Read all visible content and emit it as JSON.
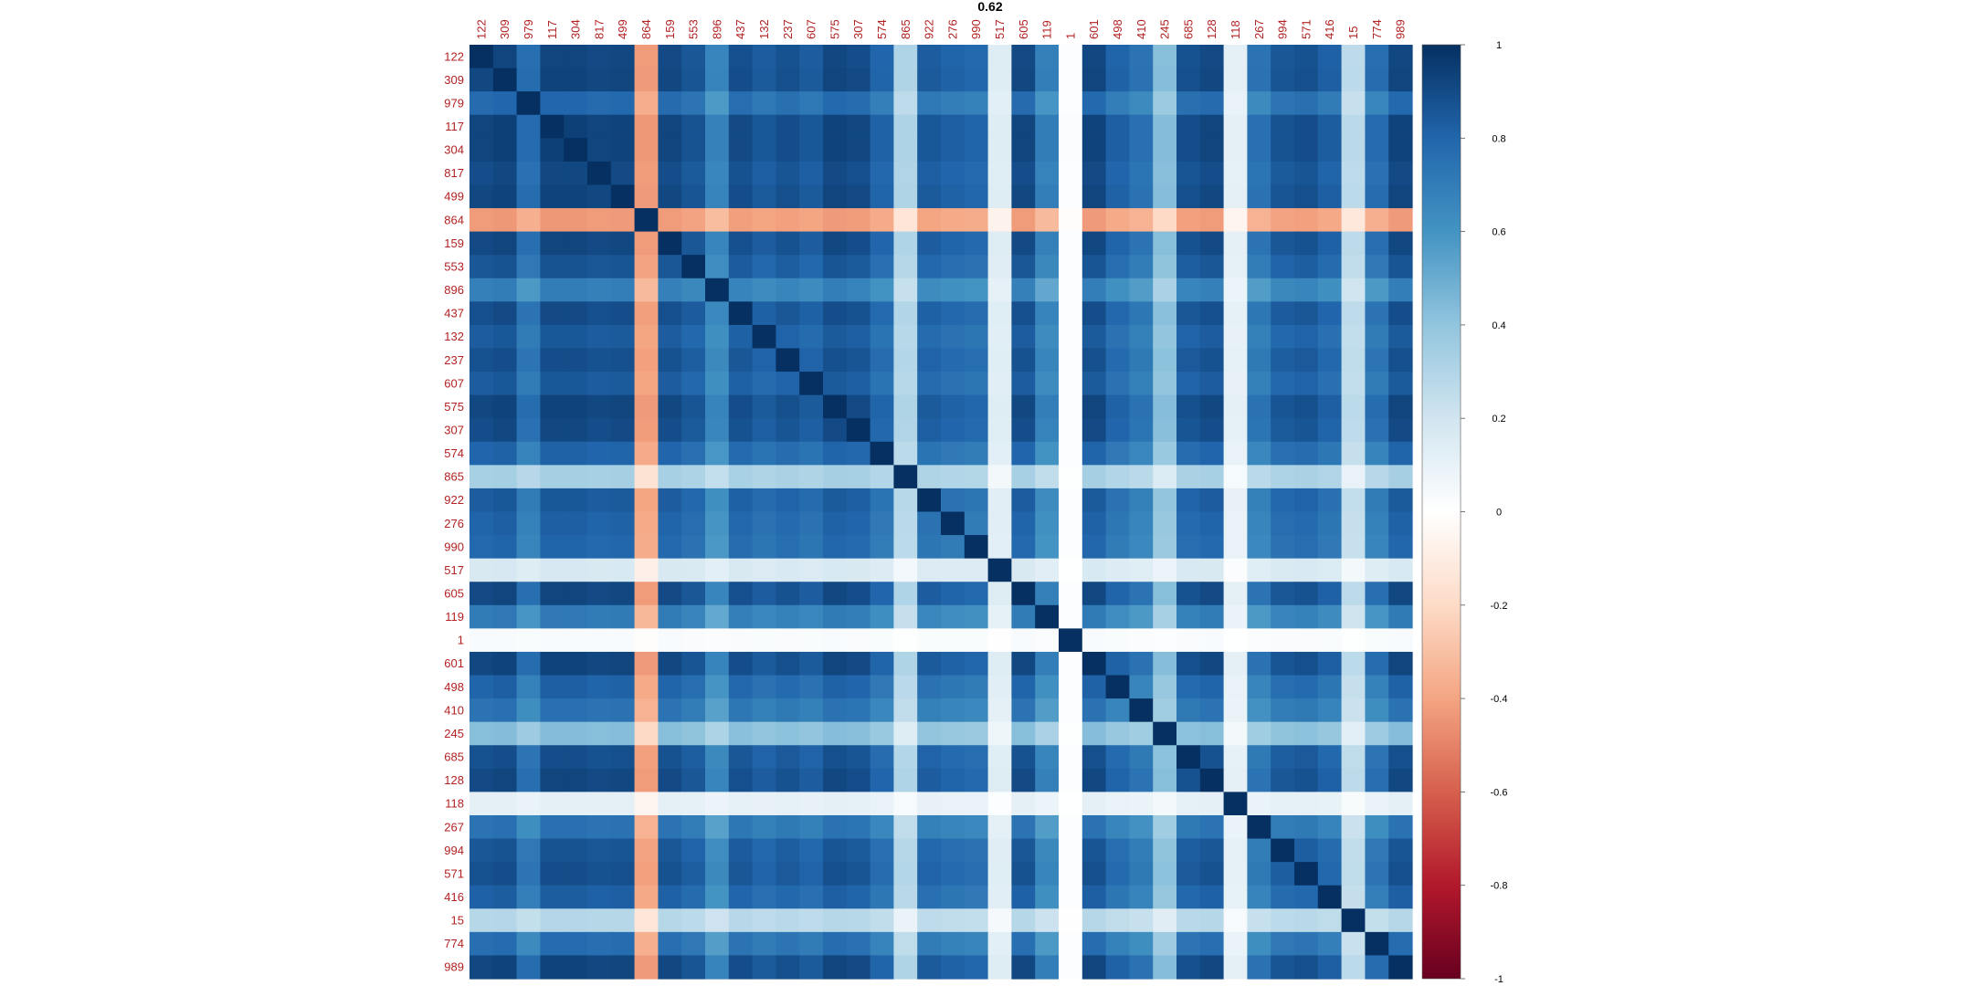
{
  "chart_data": {
    "type": "heatmap",
    "title": "0.62",
    "labels": [
      "122",
      "309",
      "979",
      "117",
      "304",
      "817",
      "499",
      "864",
      "159",
      "553",
      "896",
      "437",
      "132",
      "237",
      "607",
      "575",
      "307",
      "574",
      "865",
      "922",
      "276",
      "990",
      "517",
      "605",
      "119",
      "1",
      "601",
      "498",
      "410",
      "245",
      "685",
      "128",
      "118",
      "267",
      "994",
      "571",
      "416",
      "15",
      "774",
      "989"
    ],
    "value_range": [
      -1,
      1
    ],
    "colorbar_ticks": [
      1,
      0.8,
      0.6,
      0.4,
      0.2,
      0,
      -0.2,
      -0.4,
      -0.6,
      -0.8,
      -1
    ],
    "colorbar_tick_labels": [
      "1",
      "0.8",
      "0.6",
      "0.4",
      "0.2",
      "0",
      "-0.2",
      "-0.4",
      "-0.6",
      "-0.8",
      "-1"
    ],
    "colors": {
      "tick_label": "#b22222",
      "scale": [
        "#67001f",
        "#b2182b",
        "#d6604d",
        "#f4a582",
        "#fddbc7",
        "#ffffff",
        "#d1e5f0",
        "#92c5de",
        "#4393c3",
        "#2166ac",
        "#053061"
      ]
    },
    "row_factors": [
      0.95,
      0.96,
      0.82,
      0.97,
      0.97,
      0.94,
      0.96,
      -0.45,
      0.95,
      0.9,
      0.72,
      0.93,
      0.88,
      0.92,
      0.88,
      0.96,
      0.94,
      0.84,
      0.35,
      0.88,
      0.85,
      0.83,
      0.18,
      0.95,
      0.74,
      0.03,
      0.96,
      0.85,
      0.78,
      0.45,
      0.92,
      0.95,
      0.12,
      0.78,
      0.9,
      0.92,
      0.86,
      0.3,
      0.8,
      0.96
    ],
    "col_factors": [
      0.95,
      0.97,
      0.8,
      0.97,
      0.97,
      0.95,
      0.96,
      -0.45,
      0.95,
      0.9,
      0.7,
      0.93,
      0.88,
      0.92,
      0.88,
      0.96,
      0.94,
      0.84,
      0.32,
      0.88,
      0.85,
      0.83,
      0.15,
      0.95,
      0.72,
      0.02,
      0.96,
      0.85,
      0.78,
      0.45,
      0.92,
      0.95,
      0.12,
      0.78,
      0.9,
      0.92,
      0.86,
      0.28,
      0.8,
      0.96
    ]
  }
}
